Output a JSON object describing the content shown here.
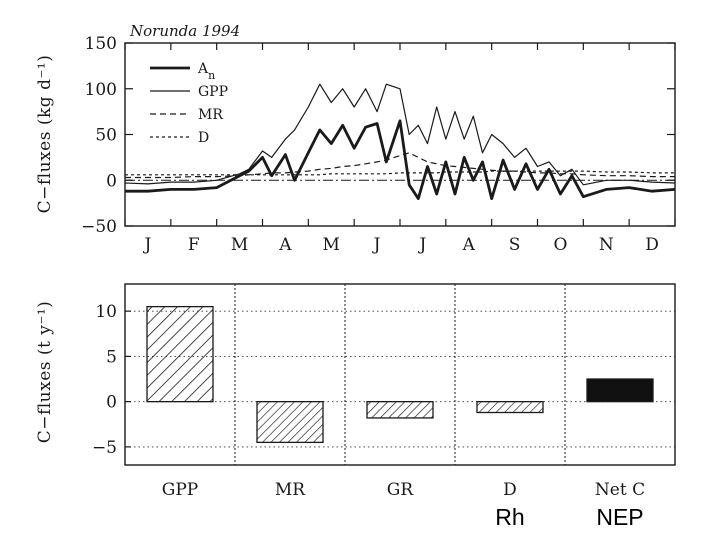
{
  "chart_data": [
    {
      "type": "line",
      "title": "Norunda 1994",
      "xlabel": "",
      "ylabel": "C−fluxes (kg d⁻¹)",
      "ylim": [
        -50,
        150
      ],
      "yticks": [
        "150",
        "100",
        "50",
        "0",
        "−50"
      ],
      "yticks_values": [
        150,
        100,
        50,
        0,
        -50
      ],
      "xticks": [
        "J",
        "F",
        "M",
        "A",
        "M",
        "J",
        "J",
        "A",
        "S",
        "O",
        "N",
        "D"
      ],
      "legend_position": "top-left",
      "x": [
        0,
        0.5,
        1,
        1.5,
        2,
        2.5,
        2.7,
        3,
        3.2,
        3.5,
        3.7,
        4,
        4.25,
        4.5,
        4.75,
        5,
        5.25,
        5.5,
        5.7,
        6,
        6.2,
        6.4,
        6.6,
        6.8,
        7,
        7.2,
        7.4,
        7.6,
        7.8,
        8,
        8.25,
        8.5,
        8.75,
        9,
        9.25,
        9.5,
        9.75,
        10,
        10.5,
        11,
        11.5,
        12
      ],
      "series": [
        {
          "name": "A",
          "name_subscript": "n",
          "style": "thick",
          "values": [
            -12,
            -12,
            -10,
            -10,
            -8,
            5,
            10,
            25,
            5,
            28,
            0,
            30,
            55,
            40,
            60,
            35,
            58,
            62,
            20,
            65,
            -5,
            -20,
            15,
            -15,
            20,
            -15,
            25,
            0,
            20,
            -20,
            22,
            -10,
            18,
            -10,
            12,
            -15,
            5,
            -18,
            -10,
            -8,
            -12,
            -10
          ]
        },
        {
          "name": "GPP",
          "style": "thin",
          "values": [
            -3,
            -4,
            -2,
            -2,
            0,
            7,
            12,
            32,
            25,
            45,
            55,
            80,
            105,
            85,
            100,
            80,
            100,
            75,
            105,
            100,
            50,
            60,
            40,
            80,
            45,
            75,
            45,
            70,
            30,
            50,
            40,
            25,
            35,
            15,
            20,
            5,
            12,
            -5,
            0,
            0,
            -2,
            -3
          ]
        },
        {
          "name": "MR",
          "style": "dashed",
          "values": [
            3,
            3,
            3,
            4,
            4,
            5,
            6,
            7,
            8,
            8,
            9,
            10,
            12,
            13,
            15,
            16,
            18,
            20,
            22,
            27,
            30,
            25,
            20,
            18,
            16,
            15,
            14,
            13,
            12,
            11,
            10,
            10,
            9,
            8,
            8,
            7,
            7,
            6,
            5,
            5,
            4,
            4
          ]
        },
        {
          "name": "D",
          "style": "dotted",
          "values": [
            6,
            6,
            6,
            6,
            6,
            6,
            6,
            6,
            6,
            6,
            6,
            6,
            6,
            7,
            7,
            7,
            7,
            7,
            7,
            8,
            8,
            8,
            8,
            8,
            9,
            9,
            9,
            9,
            9,
            10,
            10,
            10,
            10,
            10,
            10,
            10,
            10,
            10,
            9,
            9,
            8,
            8
          ]
        }
      ]
    },
    {
      "type": "bar",
      "xlabel": "",
      "ylabel": "C−fluxes (t y⁻¹)",
      "ylim": [
        -7,
        13
      ],
      "yticks": [
        "10",
        "5",
        "0",
        "−5"
      ],
      "yticks_values": [
        10,
        5,
        0,
        -5
      ],
      "grid": true,
      "categories": [
        "GPP",
        "MR",
        "GR",
        "D",
        "Net C"
      ],
      "values": [
        10.5,
        -4.5,
        -1.8,
        -1.2,
        2.5
      ],
      "fills": [
        "hatch-wide",
        "hatch",
        "hatch",
        "hatch",
        "solid"
      ],
      "annotations": [
        "Rh",
        "NEP"
      ]
    }
  ],
  "colors": {
    "ink": "#1a1a1a",
    "solid_bar": "#111111",
    "grid": "#333333",
    "background": "#ffffff"
  }
}
